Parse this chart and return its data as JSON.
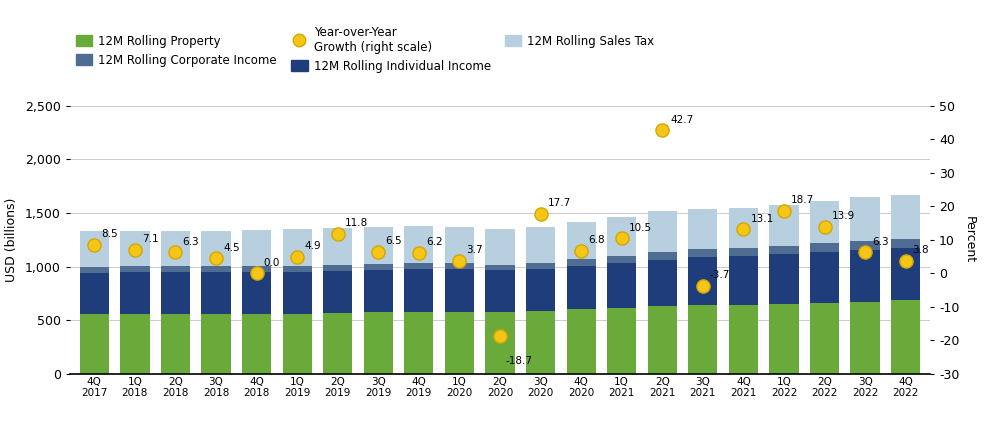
{
  "categories": [
    "4Q\n2017",
    "1Q\n2018",
    "2Q\n2018",
    "3Q\n2018",
    "4Q\n2018",
    "1Q\n2019",
    "2Q\n2019",
    "3Q\n2019",
    "4Q\n2019",
    "1Q\n2020",
    "2Q\n2020",
    "3Q\n2020",
    "4Q\n2020",
    "1Q\n2021",
    "2Q\n2021",
    "3Q\n2021",
    "4Q\n2021",
    "1Q\n2022",
    "2Q\n2022",
    "3Q\n2022",
    "4Q\n2022"
  ],
  "property": [
    555,
    557,
    558,
    560,
    562,
    563,
    568,
    575,
    580,
    582,
    582,
    590,
    603,
    618,
    633,
    640,
    645,
    655,
    665,
    675,
    685
  ],
  "individual": [
    390,
    392,
    392,
    390,
    388,
    390,
    392,
    395,
    400,
    395,
    385,
    390,
    405,
    415,
    430,
    450,
    455,
    462,
    472,
    482,
    490
  ],
  "corporate": [
    55,
    54,
    55,
    56,
    54,
    55,
    57,
    58,
    57,
    56,
    52,
    55,
    65,
    70,
    76,
    78,
    76,
    78,
    82,
    82,
    82
  ],
  "sales": [
    330,
    328,
    328,
    330,
    333,
    338,
    343,
    343,
    342,
    338,
    328,
    330,
    342,
    358,
    378,
    373,
    368,
    378,
    393,
    408,
    412
  ],
  "yoy": [
    8.5,
    7.1,
    6.3,
    4.5,
    0.0,
    4.9,
    11.8,
    6.5,
    6.2,
    3.7,
    -18.7,
    17.7,
    6.8,
    10.5,
    42.7,
    -3.7,
    13.1,
    18.7,
    13.9,
    6.3,
    3.8
  ],
  "color_property": "#6aaa3a",
  "color_individual": "#1f3d7a",
  "color_corporate": "#4f6d93",
  "color_sales": "#b8cfe0",
  "color_yoy_fill": "#f5c518",
  "color_yoy_edge": "#d4a800",
  "ylabel_left": "USD (billions)",
  "ylabel_right": "Percent",
  "ylim_left": [
    0,
    2500
  ],
  "ylim_right": [
    -30,
    50
  ],
  "yticks_left": [
    0,
    500,
    1000,
    1500,
    2000,
    2500
  ],
  "ytick_labels_left": [
    "0",
    "500",
    "1,000",
    "1,500",
    "2,000",
    "2,500"
  ],
  "yticks_right": [
    -30,
    -20,
    -10,
    0,
    10,
    20,
    30,
    40,
    50
  ],
  "ytick_labels_right": [
    "-30",
    "-20",
    "-10",
    "0",
    "10",
    "20",
    "30",
    "40",
    "50"
  ],
  "legend_labels": [
    "12M Rolling Property",
    "12M Rolling Individual Income",
    "12M Rolling Corporate Income",
    "12M Rolling Sales Tax",
    "Year-over-Year\nGrowth (right scale)"
  ],
  "background_color": "#ffffff",
  "grid_color": "#cccccc"
}
